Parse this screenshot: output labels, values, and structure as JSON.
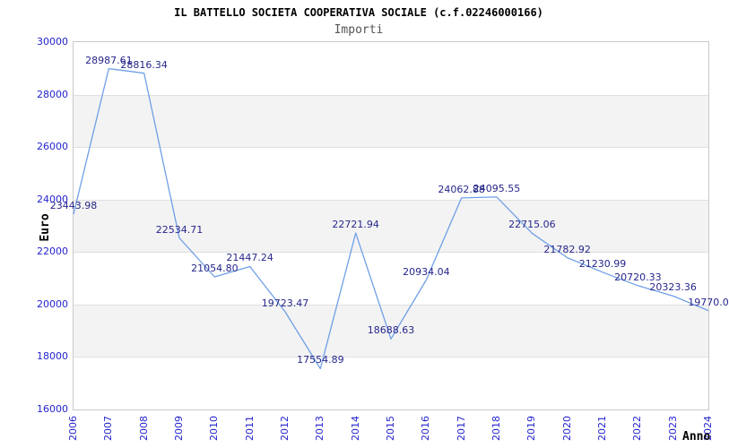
{
  "chart_data": {
    "type": "line",
    "title": "IL BATTELLO SOCIETA COOPERATIVA SOCIALE (c.f.02246000166)",
    "subtitle": "Importi",
    "xlabel": "Anno",
    "ylabel": "Euro",
    "x": [
      2006,
      2007,
      2008,
      2009,
      2010,
      2011,
      2012,
      2013,
      2014,
      2015,
      2016,
      2017,
      2018,
      2019,
      2020,
      2021,
      2022,
      2023,
      2024
    ],
    "series": [
      {
        "name": "Importi",
        "values": [
          23443.98,
          28987.61,
          28816.34,
          22534.71,
          21054.8,
          21447.24,
          19723.47,
          17554.89,
          22721.94,
          18688.63,
          20934.04,
          24062.88,
          24095.55,
          22715.06,
          21782.92,
          21230.99,
          20720.33,
          20323.36,
          19770.0
        ]
      }
    ],
    "point_labels": [
      "23443.98",
      "28987.61",
      "28816.34",
      "22534.71",
      "21054.80",
      "21447.24",
      "19723.47",
      "17554.89",
      "22721.94",
      "18688.63",
      "20934.04",
      "24062.88",
      "24095.55",
      "22715.06",
      "21782.92",
      "21230.99",
      "20720.33",
      "20323.36",
      "19770.0"
    ],
    "ylim": [
      16000,
      30000
    ],
    "ytick_step": 2000,
    "yticks": [
      "16000",
      "18000",
      "20000",
      "22000",
      "24000",
      "26000",
      "28000",
      "30000"
    ],
    "grid": "horizontal gridlines every 2000 with alternating shaded bands",
    "legend": "none",
    "colors": {
      "line": "#6f9fe6",
      "point_label": "#26268b",
      "tick_label": "#2424ce",
      "title": "#000000",
      "subtitle": "#555555",
      "band_fill": "#f3f3f3",
      "gridline": "#e0e0e0",
      "plot_border": "#c9c9c9",
      "background": "#ffffff"
    }
  }
}
